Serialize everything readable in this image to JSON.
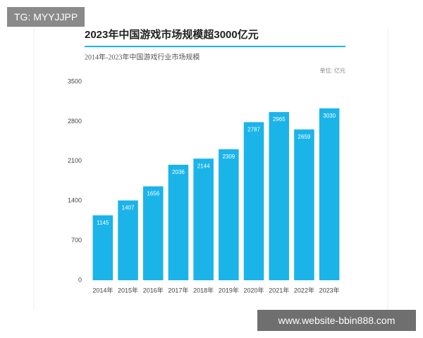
{
  "badge": "TG: MYYJJPP",
  "watermark": "www.website-bbin888.com",
  "chart_data": {
    "type": "bar",
    "title": "2023年中国游戏市场规模超3000亿元",
    "subtitle": "2014年-2023年中国游戏行业市场规模",
    "unit_label": "单位: 亿元",
    "categories": [
      "2014年",
      "2015年",
      "2016年",
      "2017年",
      "2018年",
      "2019年",
      "2020年",
      "2021年",
      "2022年",
      "2023年"
    ],
    "values": [
      1145,
      1407,
      1656,
      2036,
      2144,
      2309,
      2787,
      2965,
      2659,
      3030
    ],
    "color": "#1bb4e9",
    "ylim": [
      0,
      3500
    ],
    "yticks": [
      0,
      700,
      1400,
      2100,
      2800,
      3500
    ],
    "grid": false
  }
}
